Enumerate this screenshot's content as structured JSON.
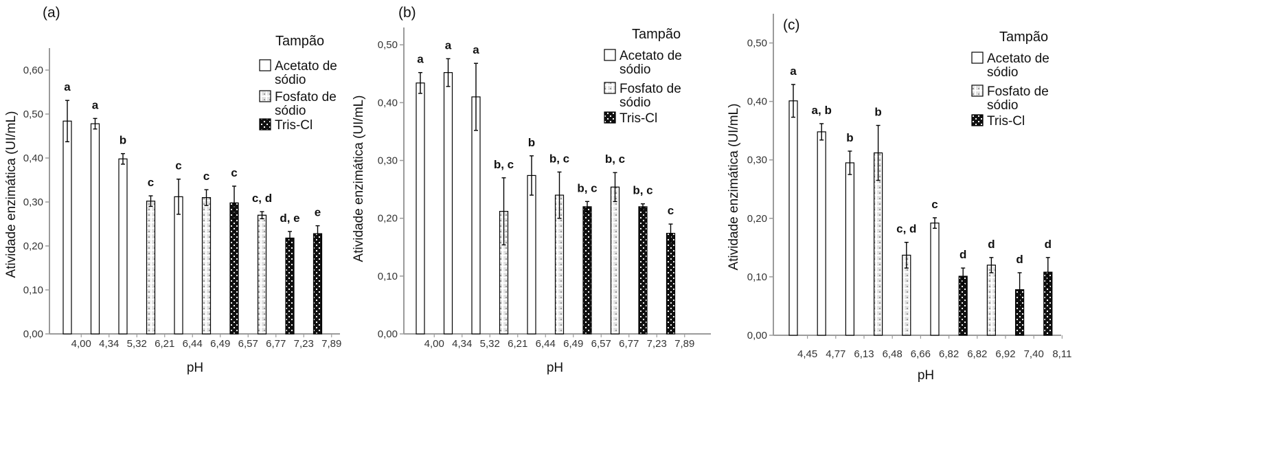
{
  "colors": {
    "background": "#ffffff",
    "axis": "#9a9a9a",
    "bar_outline": "#000000",
    "acetato_fill": "#ffffff",
    "fosfato_fill": "#dcdcdc",
    "tris_fill": "#111111"
  },
  "legend": {
    "title": "Tampão",
    "entries": [
      {
        "key": "acetato",
        "lines": [
          "Acetato de",
          "sódio"
        ],
        "pattern": "white"
      },
      {
        "key": "fosfato",
        "lines": [
          "Fosfato de",
          "sódio"
        ],
        "pattern": "dotted"
      },
      {
        "key": "tris",
        "lines": [
          "Tris-Cl"
        ],
        "pattern": "checker"
      }
    ]
  },
  "chart_data": [
    {
      "type": "bar",
      "panel": "(a)",
      "xlabel": "pH",
      "ylabel": "Atividade enzimática (UI/mL)",
      "ylim": [
        0,
        0.65
      ],
      "yticks": [
        "0,00",
        "0,10",
        "0,20",
        "0,30",
        "0,40",
        "0,50",
        "0,60"
      ],
      "categories": [
        "4,00",
        "4,34",
        "5,32",
        "6,21",
        "6,44",
        "6,49",
        "6,57",
        "6,77",
        "7,23",
        "7,89"
      ],
      "bars": [
        {
          "pH": "4,00",
          "buffer": "acetato",
          "value": 0.484,
          "error": 0.047,
          "sig": "a"
        },
        {
          "pH": "4,34",
          "buffer": "acetato",
          "value": 0.478,
          "error": 0.012,
          "sig": "a"
        },
        {
          "pH": "5,32",
          "buffer": "acetato",
          "value": 0.398,
          "error": 0.012,
          "sig": "b"
        },
        {
          "pH": "6,21",
          "buffer": "fosfato",
          "value": 0.302,
          "error": 0.012,
          "sig": "c"
        },
        {
          "pH": "6,44",
          "buffer": "acetato",
          "value": 0.312,
          "error": 0.04,
          "sig": "c"
        },
        {
          "pH": "6,49",
          "buffer": "fosfato",
          "value": 0.31,
          "error": 0.018,
          "sig": "c"
        },
        {
          "pH": "6,57",
          "buffer": "tris",
          "value": 0.298,
          "error": 0.038,
          "sig": "c"
        },
        {
          "pH": "6,77",
          "buffer": "fosfato",
          "value": 0.27,
          "error": 0.008,
          "sig": "c, d"
        },
        {
          "pH": "7,23",
          "buffer": "tris",
          "value": 0.218,
          "error": 0.015,
          "sig": "d, e"
        },
        {
          "pH": "7,89",
          "buffer": "tris",
          "value": 0.228,
          "error": 0.018,
          "sig": "e"
        }
      ]
    },
    {
      "type": "bar",
      "panel": "(b)",
      "xlabel": "pH",
      "ylabel": "Atividade enzimática (UI/mL)",
      "ylim": [
        0,
        0.53
      ],
      "yticks": [
        "0,00",
        "0,10",
        "0,20",
        "0,30",
        "0,40",
        "0,50"
      ],
      "categories": [
        "4,00",
        "4,34",
        "5,32",
        "6,21",
        "6,44",
        "6,49",
        "6,57",
        "6,77",
        "7,23",
        "7,89"
      ],
      "bars": [
        {
          "pH": "4,00",
          "buffer": "acetato",
          "value": 0.434,
          "error": 0.018,
          "sig": "a"
        },
        {
          "pH": "4,34",
          "buffer": "acetato",
          "value": 0.452,
          "error": 0.024,
          "sig": "a"
        },
        {
          "pH": "5,32",
          "buffer": "acetato",
          "value": 0.41,
          "error": 0.058,
          "sig": "a"
        },
        {
          "pH": "6,21",
          "buffer": "fosfato",
          "value": 0.212,
          "error": 0.058,
          "sig": "b, c"
        },
        {
          "pH": "6,44",
          "buffer": "acetato",
          "value": 0.274,
          "error": 0.034,
          "sig": "b"
        },
        {
          "pH": "6,49",
          "buffer": "fosfato",
          "value": 0.24,
          "error": 0.04,
          "sig": "b, c"
        },
        {
          "pH": "6,57",
          "buffer": "tris",
          "value": 0.22,
          "error": 0.009,
          "sig": "b, c"
        },
        {
          "pH": "6,77",
          "buffer": "fosfato",
          "value": 0.254,
          "error": 0.025,
          "sig": "b, c"
        },
        {
          "pH": "7,23",
          "buffer": "tris",
          "value": 0.22,
          "error": 0.005,
          "sig": "b, c"
        },
        {
          "pH": "7,89",
          "buffer": "tris",
          "value": 0.174,
          "error": 0.016,
          "sig": "c"
        }
      ]
    },
    {
      "type": "bar",
      "panel": "(c)",
      "xlabel": "pH",
      "ylabel": "Atividade enzimática (UI/mL)",
      "ylim": [
        0,
        0.55
      ],
      "yticks": [
        "0,00",
        "0,10",
        "0,20",
        "0,30",
        "0,40",
        "0,50"
      ],
      "categories": [
        "4,45",
        "4,77",
        "6,13",
        "6,48",
        "6,66",
        "6,82",
        "6,82",
        "6,92",
        "7,40",
        "8,11"
      ],
      "bars": [
        {
          "pH": "4,45",
          "buffer": "acetato",
          "value": 0.401,
          "error": 0.028,
          "sig": "a"
        },
        {
          "pH": "4,77",
          "buffer": "acetato",
          "value": 0.348,
          "error": 0.014,
          "sig": "a, b"
        },
        {
          "pH": "6,13",
          "buffer": "acetato",
          "value": 0.295,
          "error": 0.02,
          "sig": "b"
        },
        {
          "pH": "6,48",
          "buffer": "fosfato",
          "value": 0.312,
          "error": 0.047,
          "sig": "b"
        },
        {
          "pH": "6,66",
          "buffer": "fosfato",
          "value": 0.137,
          "error": 0.022,
          "sig": "c, d"
        },
        {
          "pH": "6,82",
          "buffer": "acetato",
          "value": 0.192,
          "error": 0.009,
          "sig": "c"
        },
        {
          "pH": "6,82",
          "buffer": "tris",
          "value": 0.101,
          "error": 0.014,
          "sig": "d"
        },
        {
          "pH": "6,92",
          "buffer": "fosfato",
          "value": 0.12,
          "error": 0.013,
          "sig": "d"
        },
        {
          "pH": "7,40",
          "buffer": "tris",
          "value": 0.078,
          "error": 0.029,
          "sig": "d"
        },
        {
          "pH": "8,11",
          "buffer": "tris",
          "value": 0.108,
          "error": 0.025,
          "sig": "d"
        }
      ]
    }
  ]
}
